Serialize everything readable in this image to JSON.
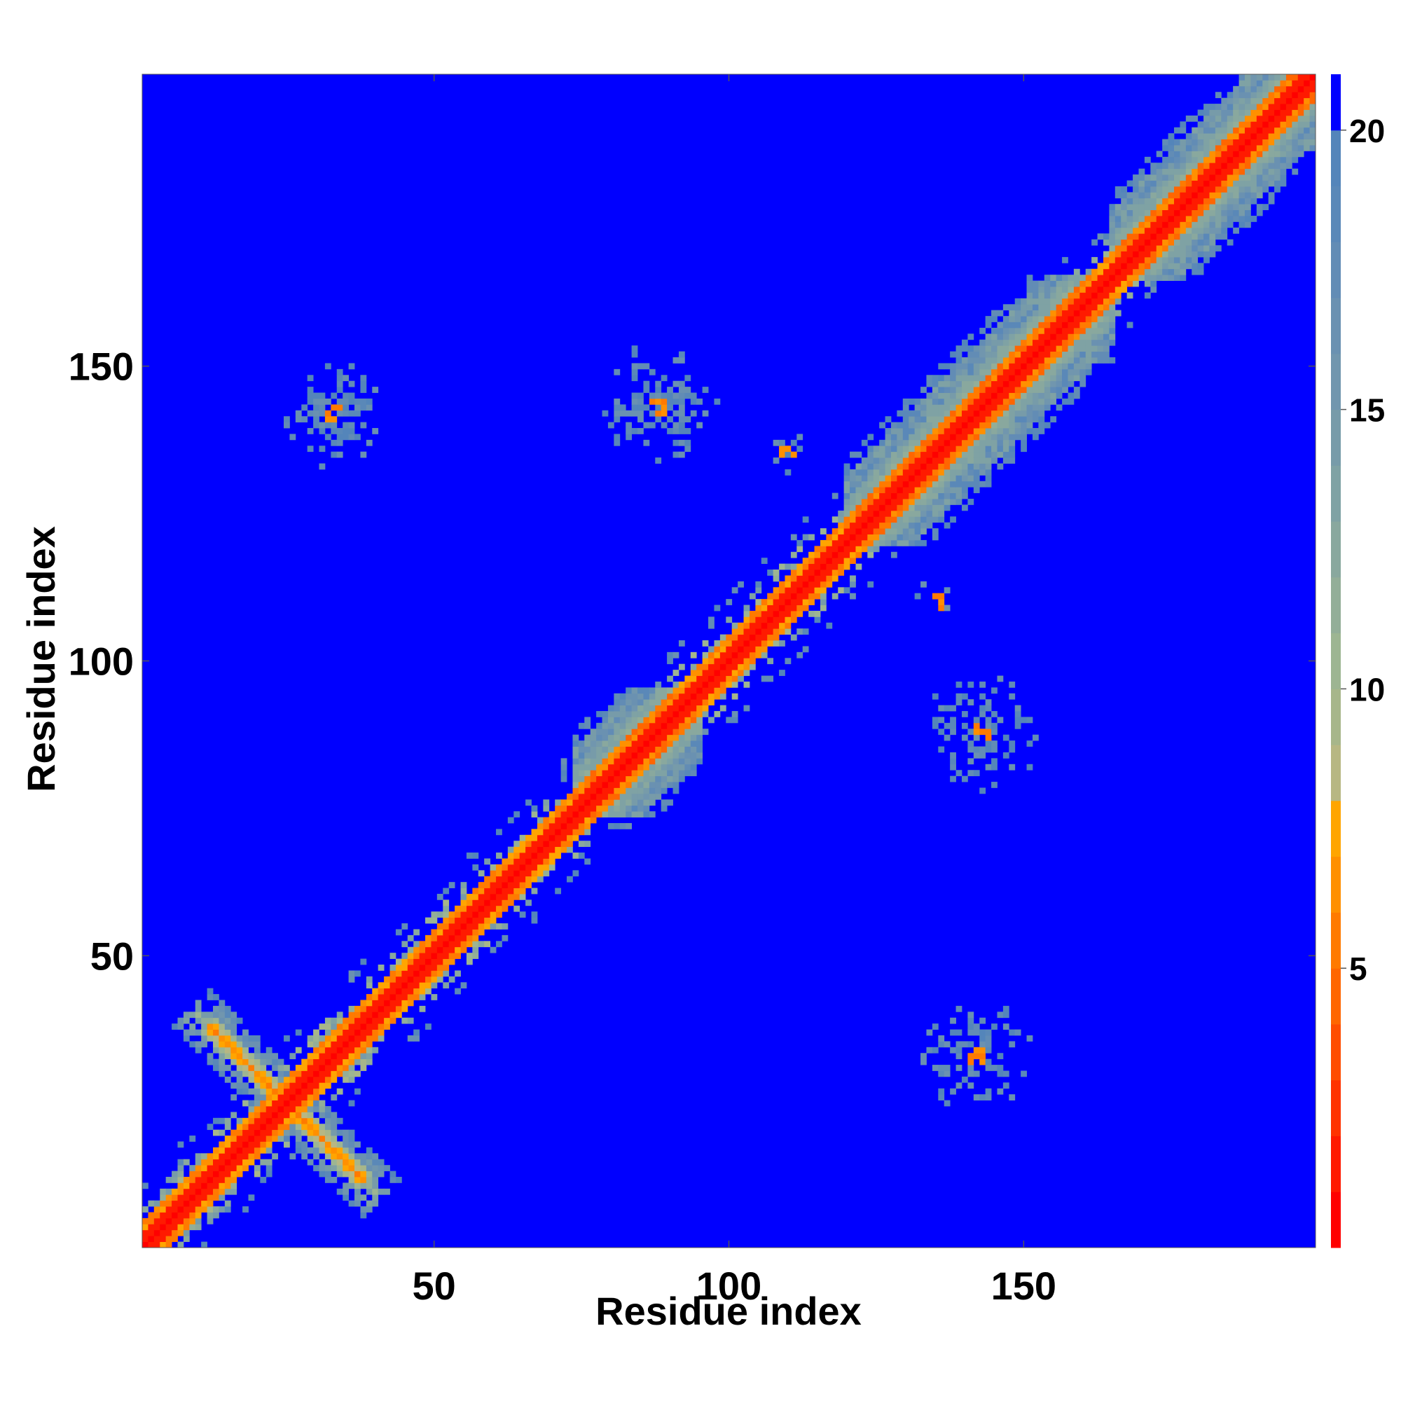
{
  "chart_data": {
    "type": "heatmap",
    "title": "",
    "xlabel": "Residue index",
    "ylabel": "Residue index",
    "n_residues": 199,
    "xlim": [
      1,
      199
    ],
    "ylim": [
      1,
      199
    ],
    "x_ticks": [
      50,
      100,
      150
    ],
    "y_ticks": [
      50,
      100,
      150
    ],
    "colorbar": {
      "ticks": [
        5,
        10,
        15,
        20
      ],
      "range": [
        0,
        21
      ],
      "levels": [
        {
          "max": 1,
          "color": "#ff0000"
        },
        {
          "max": 2,
          "color": "#ff1a00"
        },
        {
          "max": 3,
          "color": "#ff3300"
        },
        {
          "max": 4,
          "color": "#ff4d00"
        },
        {
          "max": 5,
          "color": "#ff6600"
        },
        {
          "max": 6,
          "color": "#ff7a00"
        },
        {
          "max": 7,
          "color": "#ff9000"
        },
        {
          "max": 8,
          "color": "#ffa500"
        },
        {
          "max": 9,
          "color": "#b7b783"
        },
        {
          "max": 10,
          "color": "#a7b68a"
        },
        {
          "max": 11,
          "color": "#9db592"
        },
        {
          "max": 12,
          "color": "#93ae98"
        },
        {
          "max": 13,
          "color": "#89a89e"
        },
        {
          "max": 14,
          "color": "#7fa2a4"
        },
        {
          "max": 15,
          "color": "#779ba9"
        },
        {
          "max": 16,
          "color": "#7196ae"
        },
        {
          "max": 17,
          "color": "#6a91b1"
        },
        {
          "max": 18,
          "color": "#628cb5"
        },
        {
          "max": 19,
          "color": "#5a88b8"
        },
        {
          "max": 20,
          "color": "#5485ba"
        },
        {
          "max": 21,
          "color": "#0000ff"
        }
      ]
    },
    "background_value": 21,
    "structure": {
      "diagonal": {
        "start": 1,
        "end": 199
      },
      "helices": [
        {
          "start": 74,
          "end": 95
        },
        {
          "start": 120,
          "end": 165
        },
        {
          "start": 165,
          "end": 199
        }
      ],
      "antiparallel_hairpin": {
        "turn": 25,
        "arm_length": 13
      },
      "contact_clusters": [
        {
          "center_row": 33,
          "center_col": 142,
          "spread": 10
        },
        {
          "center_row": 142,
          "center_col": 33,
          "spread": 10
        },
        {
          "center_row": 88,
          "center_col": 143,
          "spread": 11
        },
        {
          "center_row": 143,
          "center_col": 88,
          "spread": 11
        },
        {
          "center_row": 110,
          "center_col": 135,
          "spread": 4
        },
        {
          "center_row": 135,
          "center_col": 110,
          "spread": 4
        }
      ]
    }
  }
}
